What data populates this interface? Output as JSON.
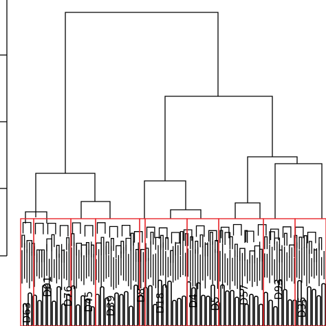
{
  "figure": {
    "type": "dendrogram",
    "orientation": "top-down",
    "colors": {
      "branch": "#000000",
      "cluster_box": "#e8262a",
      "background": "#ffffff"
    }
  },
  "leaf_labels": [
    "D63",
    "D91",
    "D76",
    "D45",
    "D39",
    "D8",
    "D18",
    "D4",
    "D5",
    "D57",
    "D93",
    "D35"
  ],
  "clusters": {
    "count": 10,
    "box_color": "#e8262a"
  }
}
